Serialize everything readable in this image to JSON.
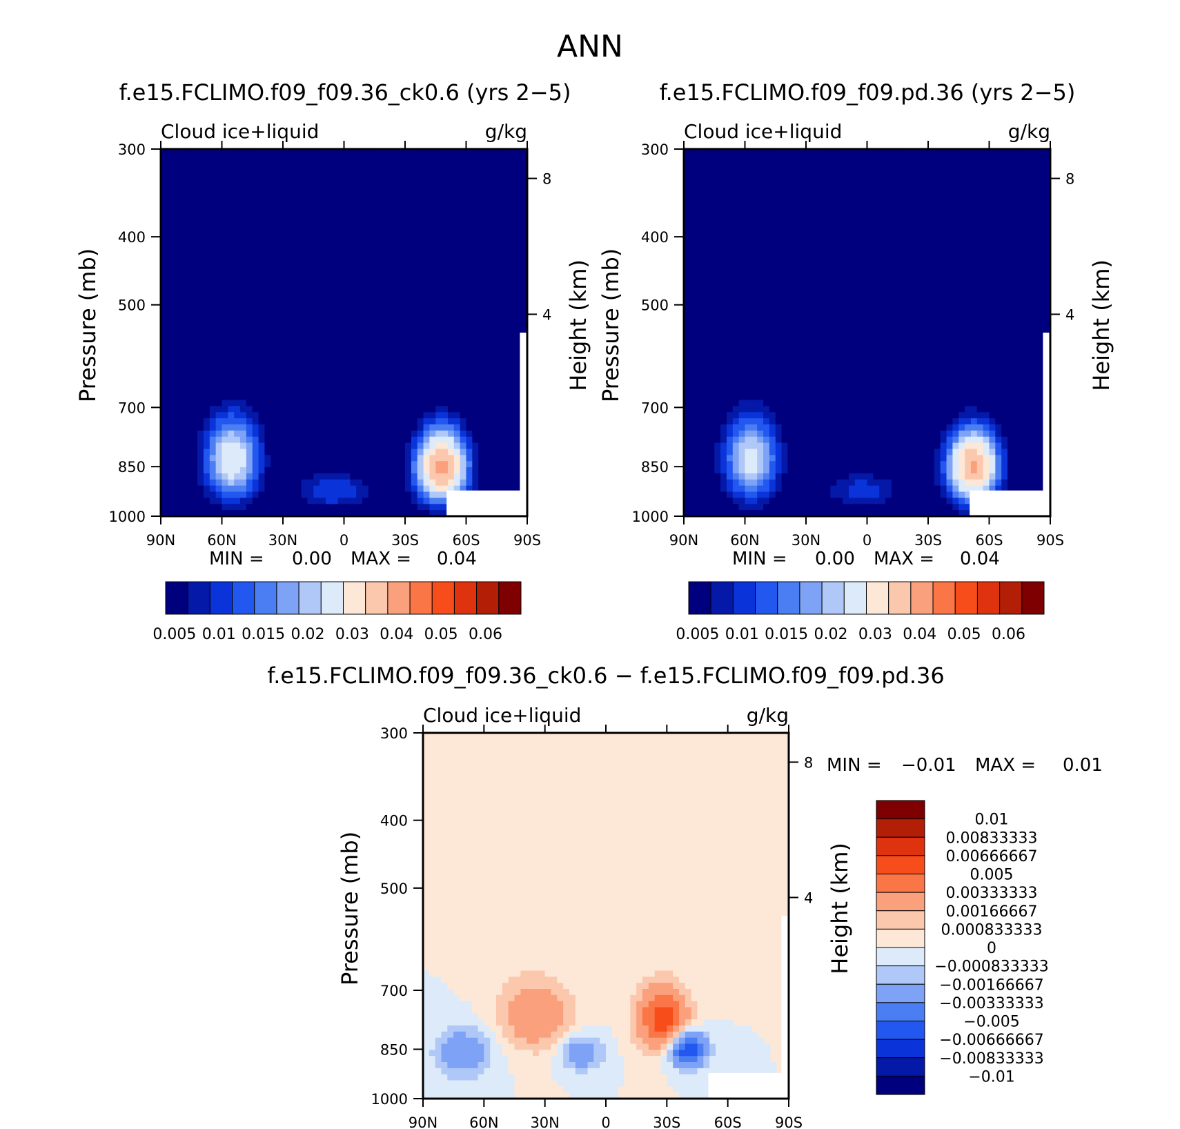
{
  "figure_title": "ANN",
  "chart_data": [
    {
      "type": "heatmap",
      "title": "f.e15.FCLIMO.f09_f09.36_ck0.6 (yrs 2−5)",
      "left_label": "Cloud ice+liquid",
      "units": "g/kg",
      "ylabel": "Pressure (mb)",
      "y2label": "Height (km)",
      "xticks": [
        "90N",
        "60N",
        "30N",
        "0",
        "30S",
        "60S",
        "90S"
      ],
      "x_range": [
        90,
        -90
      ],
      "yticks": [
        "300",
        "400",
        "500",
        "700",
        "850",
        "1000"
      ],
      "y_range": [
        300,
        1000
      ],
      "y2ticks": [
        "8",
        "4"
      ],
      "min_label": "MIN =",
      "min_value": "0.00",
      "max_label": "MAX =",
      "max_value": "0.04",
      "colorbar_labels": [
        "0.005",
        "0.01",
        "0.015",
        "0.02",
        "0.03",
        "0.04",
        "0.05",
        "0.06"
      ],
      "blobs": [
        {
          "lat": 55,
          "p": 830,
          "peak": 0.024,
          "lat_spread": 14,
          "p_spread": 120
        },
        {
          "lat": -48,
          "p": 850,
          "peak": 0.037,
          "lat_spread": 13,
          "p_spread": 105
        },
        {
          "lat": 5,
          "p": 920,
          "peak": 0.01,
          "lat_spread": 20,
          "p_spread": 60
        }
      ]
    },
    {
      "type": "heatmap",
      "title": "f.e15.FCLIMO.f09_f09.pd.36 (yrs 2−5)",
      "left_label": "Cloud ice+liquid",
      "units": "g/kg",
      "ylabel": "Pressure (mb)",
      "y2label": "Height (km)",
      "xticks": [
        "90N",
        "60N",
        "30N",
        "0",
        "30S",
        "60S",
        "90S"
      ],
      "x_range": [
        90,
        -90
      ],
      "yticks": [
        "300",
        "400",
        "500",
        "700",
        "850",
        "1000"
      ],
      "y_range": [
        300,
        1000
      ],
      "y2ticks": [
        "8",
        "4"
      ],
      "min_label": "MIN =",
      "min_value": "0.00",
      "max_label": "MAX =",
      "max_value": "0.04",
      "colorbar_labels": [
        "0.005",
        "0.01",
        "0.015",
        "0.02",
        "0.03",
        "0.04",
        "0.05",
        "0.06"
      ],
      "blobs": [
        {
          "lat": 57,
          "p": 830,
          "peak": 0.022,
          "lat_spread": 14,
          "p_spread": 120
        },
        {
          "lat": -52,
          "p": 850,
          "peak": 0.036,
          "lat_spread": 13,
          "p_spread": 105
        },
        {
          "lat": 2,
          "p": 920,
          "peak": 0.009,
          "lat_spread": 20,
          "p_spread": 60
        }
      ]
    },
    {
      "type": "heatmap",
      "title": "f.e15.FCLIMO.f09_f09.36_ck0.6 − f.e15.FCLIMO.f09_f09.pd.36",
      "left_label": "Cloud ice+liquid",
      "units": "g/kg",
      "ylabel": "Pressure (mb)",
      "y2label": "Height (km)",
      "xticks": [
        "90N",
        "60N",
        "30N",
        "0",
        "30S",
        "60S",
        "90S"
      ],
      "x_range": [
        90,
        -90
      ],
      "yticks": [
        "300",
        "400",
        "500",
        "700",
        "850",
        "1000"
      ],
      "y_range": [
        300,
        1000
      ],
      "y2ticks": [
        "8",
        "4"
      ],
      "min_label": "MIN =",
      "min_value": "−0.01",
      "max_label": "MAX =",
      "max_value": "0.01",
      "colorbar_labels": [
        "0.01",
        "0.00833333",
        "0.00666667",
        "0.005",
        "0.00333333",
        "0.00166667",
        "0.000833333",
        "0",
        "−0.000833333",
        "−0.00166667",
        "−0.00333333",
        "−0.005",
        "−0.00666667",
        "−0.00833333",
        "−0.01"
      ],
      "blobs": [
        {
          "lat": 35,
          "p": 760,
          "peak": 0.003,
          "lat_spread": 18,
          "p_spread": 90
        },
        {
          "lat": -28,
          "p": 770,
          "peak": 0.006,
          "lat_spread": 12,
          "p_spread": 80
        },
        {
          "lat": -40,
          "p": 850,
          "peak": -0.007,
          "lat_spread": 9,
          "p_spread": 50
        },
        {
          "lat": 70,
          "p": 860,
          "peak": -0.003,
          "lat_spread": 14,
          "p_spread": 70
        },
        {
          "lat": 12,
          "p": 860,
          "peak": -0.003,
          "lat_spread": 10,
          "p_spread": 50
        }
      ]
    }
  ],
  "colors": {
    "abs_scale": [
      "#00007f",
      "#0419a7",
      "#0a34d9",
      "#2358f0",
      "#4a7ef2",
      "#7ea2f5",
      "#b0c8f8",
      "#dceafa",
      "#fde8d8",
      "#fcc8ad",
      "#fba07c",
      "#fa7646",
      "#f74d1a",
      "#de330e",
      "#b21e06",
      "#7f0000"
    ],
    "diff_scale": [
      "#7f0000",
      "#b21e06",
      "#de330e",
      "#f74d1a",
      "#fa7646",
      "#fba07c",
      "#fcc8ad",
      "#fde8d8",
      "#dceafa",
      "#b0c8f8",
      "#7ea2f5",
      "#4a7ef2",
      "#2358f0",
      "#0a34d9",
      "#0419a7",
      "#00007f"
    ]
  }
}
